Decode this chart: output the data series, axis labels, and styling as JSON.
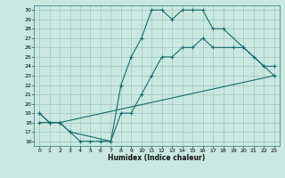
{
  "xlabel": "Humidex (Indice chaleur)",
  "xlim": [
    -0.5,
    23.5
  ],
  "ylim": [
    15.5,
    30.5
  ],
  "yticks": [
    16,
    17,
    18,
    19,
    20,
    21,
    22,
    23,
    24,
    25,
    26,
    27,
    28,
    29,
    30
  ],
  "xticks": [
    0,
    1,
    2,
    3,
    4,
    5,
    6,
    7,
    8,
    9,
    10,
    11,
    12,
    13,
    14,
    15,
    16,
    17,
    18,
    19,
    20,
    21,
    22,
    23
  ],
  "bg_color": "#c8e8e0",
  "line_color": "#1a6b6b",
  "line1_x": [
    0,
    1,
    2,
    3,
    4,
    5,
    6,
    7,
    8,
    9,
    10,
    11,
    12,
    13,
    14,
    15,
    16,
    17,
    18,
    20,
    22,
    23
  ],
  "line1_y": [
    19,
    18,
    18,
    17,
    16,
    16,
    16,
    16,
    22,
    25,
    27,
    30,
    30,
    29,
    30,
    30,
    30,
    28,
    28,
    26,
    24,
    23
  ],
  "line2_x": [
    0,
    1,
    2,
    3,
    7,
    8,
    9,
    10,
    11,
    12,
    13,
    14,
    15,
    16,
    17,
    19,
    20,
    21,
    22,
    23
  ],
  "line2_y": [
    19,
    18,
    18,
    17,
    16,
    19,
    19,
    21,
    23,
    25,
    25,
    26,
    26,
    27,
    26,
    26,
    26,
    25,
    24,
    24
  ],
  "line3_x": [
    0,
    1,
    2,
    23
  ],
  "line3_y": [
    18,
    18,
    18,
    23
  ]
}
